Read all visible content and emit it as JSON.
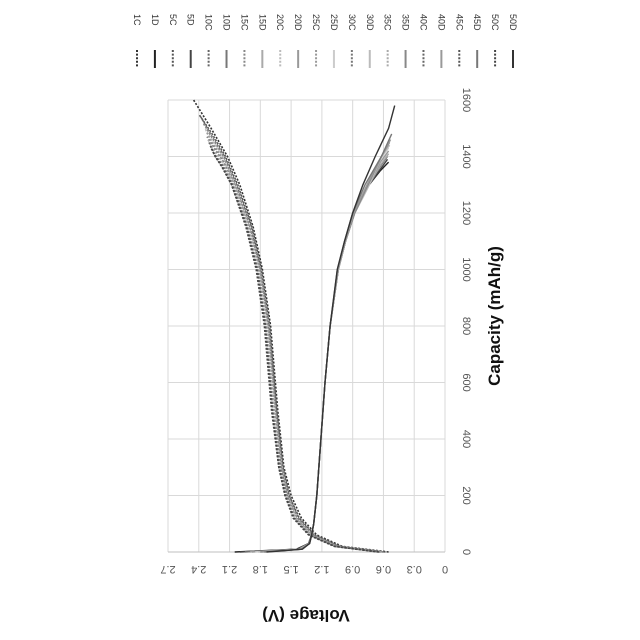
{
  "chart_data": {
    "type": "line",
    "rotation": "rotated 90 degrees clockwise",
    "xlabel": "Capacity (mAh/g)",
    "ylabel": "Voltage (V)",
    "xlim": [
      0,
      1600
    ],
    "ylim": [
      0,
      2.7
    ],
    "x_ticks": [
      "0",
      "200",
      "400",
      "600",
      "800",
      "1000",
      "1200",
      "1400",
      "1600"
    ],
    "y_ticks": [
      "0",
      "0.3",
      "0.6",
      "0.9",
      "1.2",
      "1.5",
      "1.8",
      "2.1",
      "2.4",
      "2.7"
    ],
    "grid": true,
    "legend_position": "right",
    "series": [
      {
        "name": "1C",
        "color": "#333333",
        "dash": "dotted",
        "x": [
          0,
          20,
          60,
          120,
          200,
          300,
          500,
          800,
          1000,
          1150,
          1300,
          1400,
          1500,
          1600
        ],
        "y": [
          0.55,
          1.0,
          1.25,
          1.4,
          1.5,
          1.57,
          1.63,
          1.7,
          1.78,
          1.87,
          2.0,
          2.12,
          2.28,
          2.45
        ]
      },
      {
        "name": "1D",
        "color": "#222222",
        "dash": "solid",
        "x": [
          0,
          10,
          30,
          60,
          100,
          200,
          400,
          600,
          800,
          1000,
          1100,
          1200,
          1300,
          1350,
          1380
        ],
        "y": [
          2.05,
          1.45,
          1.33,
          1.3,
          1.28,
          1.25,
          1.21,
          1.17,
          1.12,
          1.04,
          0.97,
          0.88,
          0.74,
          0.63,
          0.55
        ]
      },
      {
        "name": "5C",
        "color": "#555555",
        "dash": "dotted",
        "x": [
          0,
          20,
          60,
          120,
          200,
          300,
          500,
          800,
          1000,
          1150,
          1300,
          1400,
          1480,
          1550
        ],
        "y": [
          0.58,
          1.02,
          1.27,
          1.42,
          1.52,
          1.58,
          1.64,
          1.71,
          1.79,
          1.88,
          2.02,
          2.14,
          2.27,
          2.4
        ]
      },
      {
        "name": "5D",
        "color": "#444444",
        "dash": "solid",
        "x": [
          0,
          10,
          30,
          60,
          100,
          200,
          400,
          600,
          800,
          1000,
          1100,
          1200,
          1300,
          1350,
          1390
        ],
        "y": [
          2.0,
          1.44,
          1.33,
          1.3,
          1.28,
          1.25,
          1.21,
          1.17,
          1.12,
          1.04,
          0.97,
          0.88,
          0.74,
          0.64,
          0.56
        ]
      },
      {
        "name": "10C",
        "color": "#666666",
        "dash": "dotted",
        "x": [
          0,
          20,
          60,
          120,
          200,
          300,
          500,
          800,
          1000,
          1150,
          1300,
          1400,
          1470,
          1540
        ],
        "y": [
          0.6,
          1.03,
          1.28,
          1.43,
          1.52,
          1.58,
          1.64,
          1.72,
          1.8,
          1.89,
          2.03,
          2.15,
          2.27,
          2.38
        ]
      },
      {
        "name": "10D",
        "color": "#777777",
        "dash": "solid",
        "x": [
          0,
          10,
          30,
          60,
          100,
          200,
          400,
          600,
          800,
          1000,
          1100,
          1200,
          1300,
          1360,
          1400
        ],
        "y": [
          1.95,
          1.43,
          1.33,
          1.3,
          1.28,
          1.25,
          1.21,
          1.17,
          1.12,
          1.04,
          0.97,
          0.88,
          0.74,
          0.64,
          0.56
        ]
      },
      {
        "name": "15C",
        "color": "#888888",
        "dash": "dotted",
        "x": [
          0,
          20,
          60,
          120,
          200,
          300,
          500,
          800,
          1000,
          1150,
          1300,
          1400,
          1460,
          1520
        ],
        "y": [
          0.6,
          1.04,
          1.29,
          1.44,
          1.53,
          1.59,
          1.65,
          1.72,
          1.8,
          1.9,
          2.04,
          2.16,
          2.26,
          2.36
        ]
      },
      {
        "name": "15D",
        "color": "#aaaaaa",
        "dash": "solid",
        "x": [
          0,
          10,
          30,
          60,
          100,
          200,
          400,
          600,
          800,
          1000,
          1100,
          1200,
          1300,
          1370,
          1410
        ],
        "y": [
          1.9,
          1.42,
          1.32,
          1.3,
          1.28,
          1.25,
          1.21,
          1.17,
          1.12,
          1.04,
          0.97,
          0.88,
          0.74,
          0.63,
          0.55
        ]
      },
      {
        "name": "20C",
        "color": "#bbbbbb",
        "dash": "dotted",
        "x": [
          0,
          20,
          60,
          120,
          200,
          300,
          500,
          800,
          1000,
          1150,
          1300,
          1400,
          1450,
          1500
        ],
        "y": [
          0.62,
          1.05,
          1.3,
          1.45,
          1.53,
          1.59,
          1.66,
          1.73,
          1.81,
          1.91,
          2.05,
          2.17,
          2.26,
          2.34
        ]
      },
      {
        "name": "20D",
        "color": "#999999",
        "dash": "solid",
        "x": [
          0,
          10,
          30,
          60,
          100,
          200,
          400,
          600,
          800,
          1000,
          1100,
          1200,
          1300,
          1380,
          1420
        ],
        "y": [
          1.88,
          1.42,
          1.32,
          1.3,
          1.28,
          1.25,
          1.21,
          1.17,
          1.12,
          1.04,
          0.97,
          0.88,
          0.74,
          0.63,
          0.55
        ]
      },
      {
        "name": "25C",
        "color": "#999999",
        "dash": "dotted",
        "x": [
          0,
          20,
          60,
          120,
          200,
          300,
          500,
          800,
          1000,
          1150,
          1300,
          1400,
          1450,
          1490
        ],
        "y": [
          0.62,
          1.05,
          1.3,
          1.45,
          1.54,
          1.6,
          1.66,
          1.73,
          1.81,
          1.91,
          2.05,
          2.18,
          2.27,
          2.33
        ]
      },
      {
        "name": "25D",
        "color": "#cccccc",
        "dash": "solid",
        "x": [
          0,
          10,
          30,
          60,
          100,
          200,
          400,
          600,
          800,
          1000,
          1100,
          1200,
          1300,
          1390,
          1430
        ],
        "y": [
          1.85,
          1.41,
          1.32,
          1.3,
          1.28,
          1.25,
          1.21,
          1.17,
          1.12,
          1.04,
          0.97,
          0.88,
          0.74,
          0.63,
          0.55
        ]
      },
      {
        "name": "30C",
        "color": "#777777",
        "dash": "dotted",
        "x": [
          0,
          20,
          60,
          120,
          200,
          300,
          500,
          800,
          1000,
          1150,
          1300,
          1380,
          1430,
          1470
        ],
        "y": [
          0.63,
          1.06,
          1.31,
          1.46,
          1.54,
          1.6,
          1.67,
          1.74,
          1.82,
          1.92,
          2.06,
          2.16,
          2.25,
          2.32
        ]
      },
      {
        "name": "30D",
        "color": "#bbbbbb",
        "dash": "solid",
        "x": [
          0,
          10,
          30,
          60,
          100,
          200,
          400,
          600,
          800,
          1000,
          1100,
          1200,
          1300,
          1400,
          1440
        ],
        "y": [
          1.82,
          1.41,
          1.32,
          1.3,
          1.28,
          1.25,
          1.21,
          1.17,
          1.12,
          1.04,
          0.97,
          0.88,
          0.74,
          0.62,
          0.54
        ]
      },
      {
        "name": "35C",
        "color": "#aaaaaa",
        "dash": "dotted",
        "x": [
          0,
          20,
          60,
          120,
          200,
          300,
          500,
          800,
          1000,
          1150,
          1300,
          1380,
          1420,
          1460
        ],
        "y": [
          0.63,
          1.06,
          1.31,
          1.46,
          1.55,
          1.61,
          1.67,
          1.74,
          1.82,
          1.92,
          2.06,
          2.17,
          2.25,
          2.31
        ]
      },
      {
        "name": "35D",
        "color": "#888888",
        "dash": "solid",
        "x": [
          0,
          10,
          30,
          60,
          100,
          200,
          400,
          600,
          800,
          1000,
          1100,
          1200,
          1300,
          1400,
          1450
        ],
        "y": [
          1.8,
          1.4,
          1.32,
          1.3,
          1.28,
          1.25,
          1.21,
          1.17,
          1.12,
          1.04,
          0.97,
          0.88,
          0.75,
          0.62,
          0.54
        ]
      },
      {
        "name": "40C",
        "color": "#666666",
        "dash": "dotted",
        "x": [
          0,
          20,
          60,
          120,
          200,
          300,
          500,
          800,
          1000,
          1150,
          1300,
          1370,
          1410,
          1450
        ],
        "y": [
          0.64,
          1.07,
          1.32,
          1.47,
          1.55,
          1.61,
          1.68,
          1.75,
          1.83,
          1.93,
          2.07,
          2.17,
          2.25,
          2.3
        ]
      },
      {
        "name": "40D",
        "color": "#999999",
        "dash": "solid",
        "x": [
          0,
          10,
          30,
          60,
          100,
          200,
          400,
          600,
          800,
          1000,
          1100,
          1200,
          1300,
          1400,
          1460
        ],
        "y": [
          1.78,
          1.4,
          1.32,
          1.3,
          1.28,
          1.25,
          1.21,
          1.17,
          1.12,
          1.04,
          0.97,
          0.89,
          0.76,
          0.62,
          0.53
        ]
      },
      {
        "name": "45C",
        "color": "#555555",
        "dash": "dotted",
        "x": [
          0,
          20,
          60,
          120,
          200,
          300,
          500,
          800,
          1000,
          1150,
          1300,
          1370,
          1400,
          1440
        ],
        "y": [
          0.64,
          1.07,
          1.32,
          1.47,
          1.56,
          1.62,
          1.68,
          1.75,
          1.83,
          1.93,
          2.08,
          2.18,
          2.24,
          2.29
        ]
      },
      {
        "name": "45D",
        "color": "#777777",
        "dash": "solid",
        "x": [
          0,
          10,
          30,
          60,
          100,
          200,
          400,
          600,
          800,
          1000,
          1100,
          1200,
          1300,
          1400,
          1480
        ],
        "y": [
          1.76,
          1.4,
          1.32,
          1.3,
          1.28,
          1.25,
          1.21,
          1.17,
          1.12,
          1.05,
          0.98,
          0.9,
          0.78,
          0.62,
          0.52
        ]
      },
      {
        "name": "50C",
        "color": "#444444",
        "dash": "dotted",
        "x": [
          0,
          20,
          60,
          120,
          200,
          300,
          500,
          800,
          1000,
          1150,
          1300,
          1360,
          1400,
          1430
        ],
        "y": [
          0.65,
          1.08,
          1.33,
          1.48,
          1.56,
          1.62,
          1.69,
          1.76,
          1.84,
          1.94,
          2.08,
          2.17,
          2.24,
          2.28
        ]
      },
      {
        "name": "50D",
        "color": "#333333",
        "dash": "solid",
        "x": [
          0,
          10,
          30,
          60,
          100,
          200,
          400,
          600,
          800,
          1000,
          1100,
          1200,
          1300,
          1400,
          1500,
          1580
        ],
        "y": [
          1.74,
          1.39,
          1.32,
          1.3,
          1.28,
          1.25,
          1.21,
          1.17,
          1.12,
          1.05,
          0.98,
          0.9,
          0.8,
          0.68,
          0.55,
          0.49
        ]
      }
    ]
  }
}
